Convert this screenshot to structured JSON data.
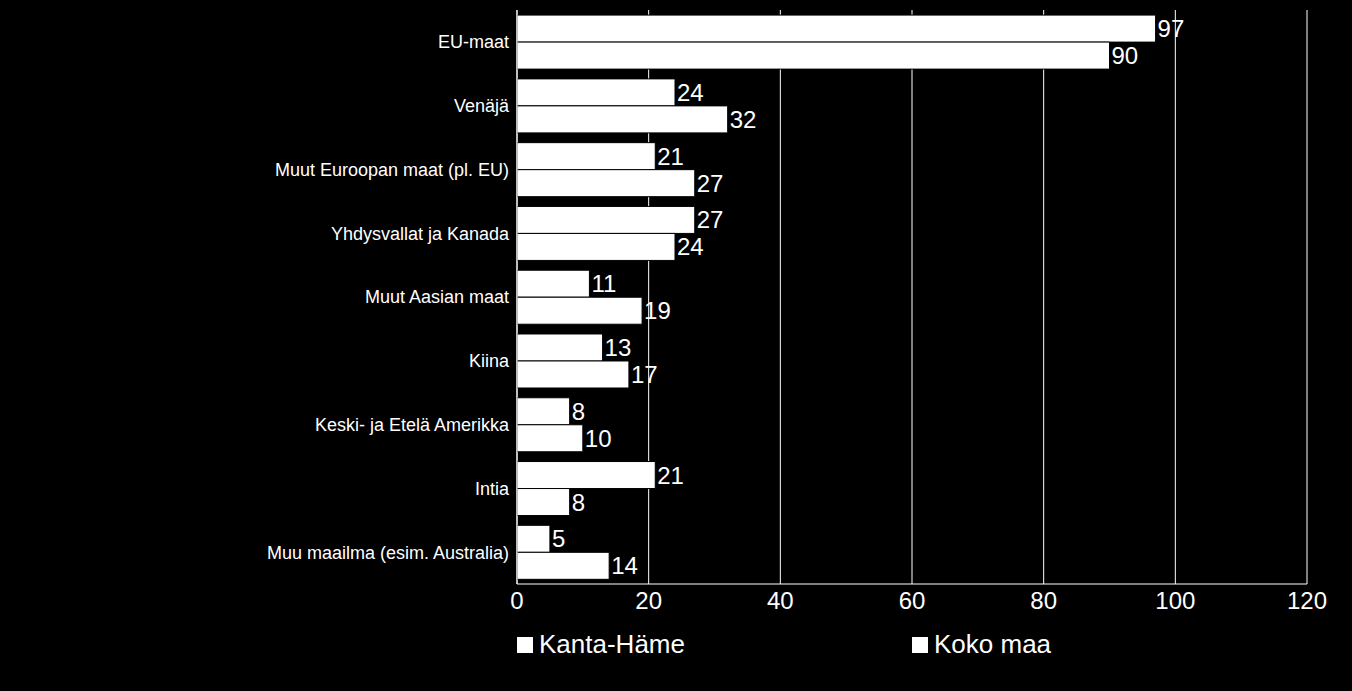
{
  "chart_data": {
    "type": "bar",
    "orientation": "horizontal",
    "categories": [
      "EU-maat",
      "Venäjä",
      "Muut Euroopan maat (pl. EU)",
      "Yhdysvallat ja Kanada",
      "Muut Aasian maat",
      "Kiina",
      "Keski- ja Etelä Amerikka",
      "Intia",
      "Muu maailma (esim. Australia)"
    ],
    "series": [
      {
        "name": "Kanta-Häme",
        "color": "#ffffff",
        "values": [
          97,
          24,
          21,
          27,
          11,
          13,
          8,
          21,
          5
        ]
      },
      {
        "name": "Koko maa",
        "color": "#ffffff",
        "values": [
          90,
          32,
          27,
          24,
          19,
          17,
          10,
          8,
          14
        ]
      }
    ],
    "xlim": [
      0,
      120
    ],
    "xticks": [
      0,
      20,
      40,
      60,
      80,
      100,
      120
    ],
    "grid": true,
    "data_labels": true,
    "legend": "bottom"
  }
}
